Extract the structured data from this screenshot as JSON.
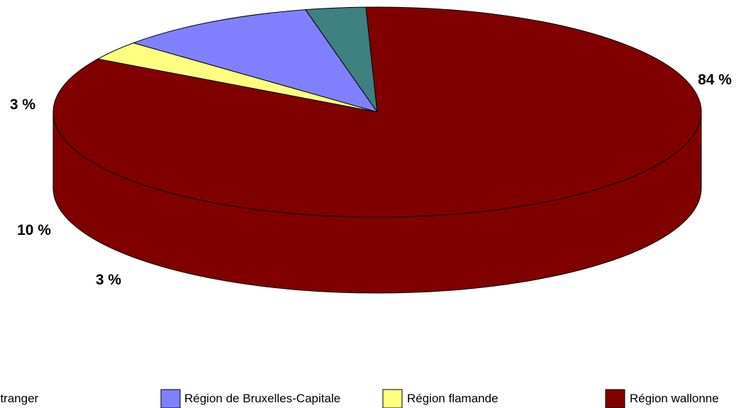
{
  "chart_data": {
    "type": "pie",
    "three_d": true,
    "categories": [
      "Étranger",
      "Région de Bruxelles-Capitale",
      "Région flamande",
      "Région wallonne"
    ],
    "values": [
      3,
      10,
      3,
      84
    ],
    "data_labels": [
      "3 %",
      "10 %",
      "3 %",
      "84 %"
    ],
    "colors": [
      "#3F8080",
      "#8080FF",
      "#FFFF80",
      "#800000"
    ],
    "legend": {
      "position": "bottom",
      "entries": [
        "Étranger",
        "Région de Bruxelles-Capitale",
        "Région flamande",
        "Région wallonne"
      ]
    }
  }
}
